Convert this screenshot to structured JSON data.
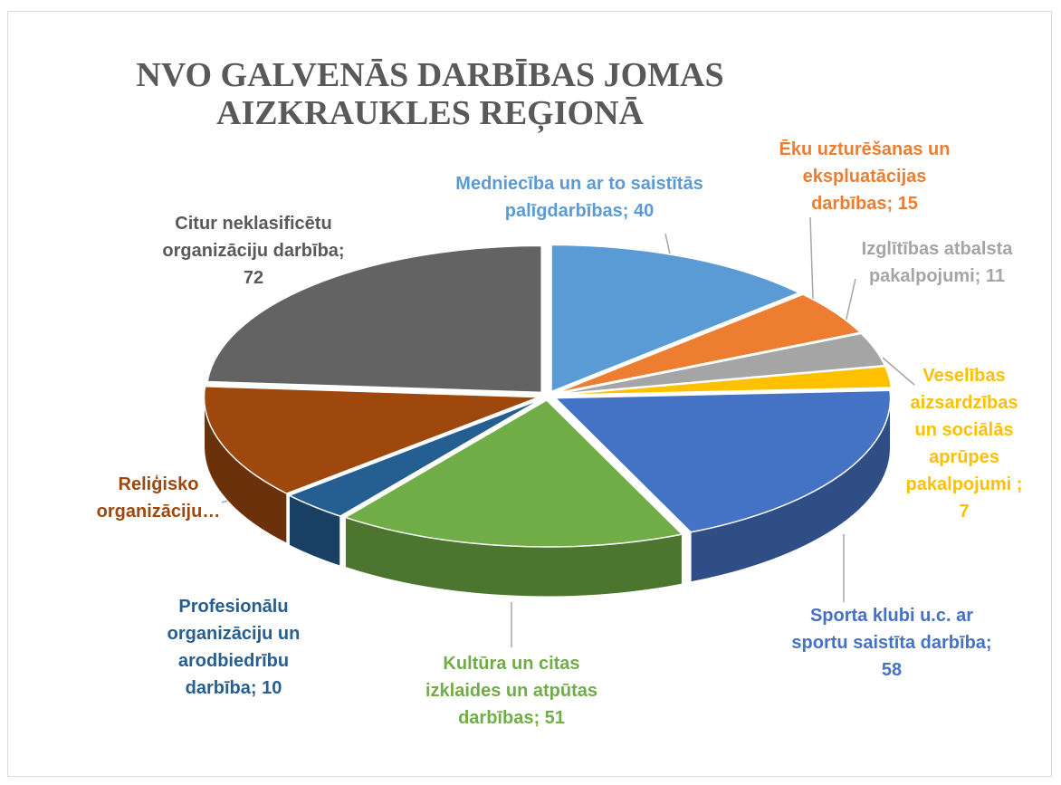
{
  "chart_data": {
    "type": "pie",
    "title": "NVO GALVENĀS DARBĪBAS JOMAS AIZKRAUKLES REĢIONĀ",
    "values": [
      40,
      15,
      11,
      7,
      58,
      51,
      10,
      38,
      72
    ],
    "value_labels": [
      "Medniecība un ar to saistītās palīgdarbības; 40",
      "Ēku uzturēšanas un ekspluatācijas darbības; 15",
      "Izglītības atbalsta pakalpojumi; 11",
      "Veselības aizsardzības un sociālās aprūpes pakalpojumi ; 7",
      "Sporta klubi u.c. ar sportu saistīta darbība; 58",
      "Kultūra un citas izklaides un atpūtas darbības; 51",
      "Profesionālu organizāciju un arodbiedrību darbība; 10",
      "Reliģisko organizāciju…",
      "Citur neklasificētu organizāciju darbība; 72"
    ],
    "colors": [
      "#5b9bd5",
      "#ed7d31",
      "#a5a5a5",
      "#ffc000",
      "#4472c4",
      "#70ad47",
      "#255e91",
      "#9e480e",
      "#636363"
    ],
    "label_colors": [
      "#5b9bd5",
      "#ed7d31",
      "#a5a5a5",
      "#ffc000",
      "#4472c4",
      "#70ad47",
      "#255e91",
      "#9e480e",
      "#595959"
    ]
  }
}
